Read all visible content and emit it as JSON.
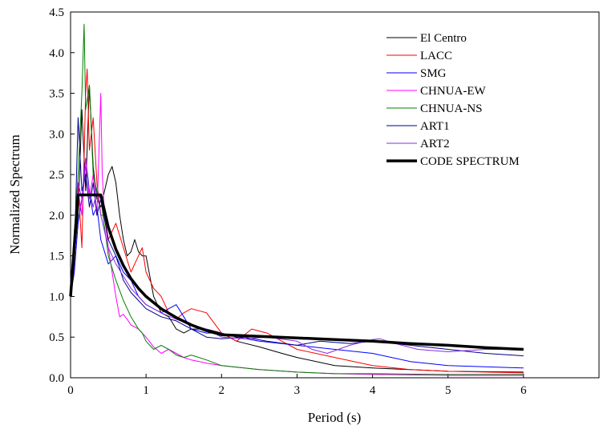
{
  "chart_data": {
    "type": "line",
    "title": "",
    "xlabel": "Period (s)",
    "ylabel": "Normalized Spectrum",
    "xlim": [
      0,
      7
    ],
    "ylim": [
      0,
      4.5
    ],
    "xticks": [
      0,
      1,
      2,
      3,
      4,
      5,
      6
    ],
    "yticks": [
      0.0,
      0.5,
      1.0,
      1.5,
      2.0,
      2.5,
      3.0,
      3.5,
      4.0,
      4.5
    ],
    "xtick_labels": [
      "0",
      "1",
      "2",
      "3",
      "4",
      "5",
      "6"
    ],
    "ytick_labels": [
      "0.0",
      "0.5",
      "1.0",
      "1.5",
      "2.0",
      "2.5",
      "3.0",
      "3.5",
      "4.0",
      "4.5"
    ],
    "grid": false,
    "legend_position": "top-right",
    "series": [
      {
        "name": "El Centro",
        "color": "#000000",
        "width": 1,
        "x": [
          0,
          0.05,
          0.1,
          0.15,
          0.2,
          0.25,
          0.3,
          0.35,
          0.4,
          0.45,
          0.5,
          0.55,
          0.6,
          0.65,
          0.7,
          0.75,
          0.8,
          0.85,
          0.9,
          0.95,
          1.0,
          1.1,
          1.2,
          1.3,
          1.4,
          1.5,
          1.6,
          1.8,
          2.0,
          2.2,
          2.5,
          2.8,
          3.0,
          3.5,
          4.0,
          4.5,
          5.0,
          6.0
        ],
        "y": [
          1.0,
          1.5,
          2.0,
          3.3,
          2.3,
          3.6,
          2.6,
          2.2,
          2.1,
          2.3,
          2.5,
          2.6,
          2.4,
          2.0,
          1.7,
          1.5,
          1.55,
          1.7,
          1.55,
          1.5,
          1.5,
          1.0,
          0.8,
          0.75,
          0.6,
          0.55,
          0.6,
          0.6,
          0.55,
          0.45,
          0.38,
          0.3,
          0.25,
          0.15,
          0.12,
          0.1,
          0.08,
          0.07
        ]
      },
      {
        "name": "LACC",
        "color": "#ff0000",
        "width": 1,
        "x": [
          0,
          0.05,
          0.1,
          0.15,
          0.2,
          0.22,
          0.25,
          0.3,
          0.35,
          0.4,
          0.45,
          0.5,
          0.6,
          0.7,
          0.8,
          0.9,
          0.95,
          1.0,
          1.1,
          1.2,
          1.3,
          1.4,
          1.5,
          1.6,
          1.8,
          2.0,
          2.2,
          2.4,
          2.6,
          2.8,
          3.0,
          3.5,
          4.0,
          4.5,
          5.0,
          6.0
        ],
        "y": [
          1.0,
          1.4,
          2.4,
          1.6,
          3.5,
          3.8,
          2.8,
          3.2,
          2.4,
          2.0,
          2.0,
          1.7,
          1.9,
          1.6,
          1.3,
          1.5,
          1.6,
          1.3,
          1.1,
          1.0,
          0.8,
          0.72,
          0.8,
          0.85,
          0.8,
          0.55,
          0.45,
          0.6,
          0.55,
          0.45,
          0.35,
          0.25,
          0.15,
          0.1,
          0.08,
          0.06
        ]
      },
      {
        "name": "SMG",
        "color": "#0000ff",
        "width": 1,
        "x": [
          0,
          0.05,
          0.1,
          0.15,
          0.2,
          0.25,
          0.3,
          0.35,
          0.4,
          0.5,
          0.6,
          0.7,
          0.8,
          0.9,
          1.0,
          1.1,
          1.2,
          1.3,
          1.4,
          1.5,
          1.6,
          1.8,
          2.0,
          2.2,
          2.5,
          3.0,
          3.5,
          4.0,
          4.5,
          5.0,
          6.0
        ],
        "y": [
          1.0,
          1.3,
          1.9,
          2.2,
          2.7,
          2.3,
          2.0,
          2.1,
          1.7,
          1.4,
          1.5,
          1.3,
          1.2,
          1.0,
          0.9,
          0.85,
          0.8,
          0.85,
          0.9,
          0.75,
          0.6,
          0.55,
          0.55,
          0.5,
          0.45,
          0.4,
          0.35,
          0.3,
          0.2,
          0.15,
          0.12
        ]
      },
      {
        "name": "CHNUA-EW",
        "color": "#ff00ff",
        "width": 1,
        "x": [
          0,
          0.05,
          0.1,
          0.15,
          0.2,
          0.25,
          0.3,
          0.35,
          0.4,
          0.42,
          0.45,
          0.5,
          0.55,
          0.6,
          0.65,
          0.7,
          0.75,
          0.8,
          0.9,
          1.0,
          1.1,
          1.2,
          1.3,
          1.4,
          1.5,
          1.6,
          1.8,
          2.0,
          2.5,
          3.0,
          3.5,
          4.0,
          5.0,
          6.0
        ],
        "y": [
          1.1,
          1.8,
          2.3,
          2.0,
          2.7,
          2.2,
          2.5,
          2.0,
          3.5,
          2.5,
          2.0,
          1.6,
          1.3,
          1.0,
          0.75,
          0.78,
          0.72,
          0.65,
          0.6,
          0.5,
          0.38,
          0.3,
          0.35,
          0.3,
          0.25,
          0.22,
          0.18,
          0.15,
          0.1,
          0.07,
          0.05,
          0.04,
          0.03,
          0.03
        ]
      },
      {
        "name": "CHNUA-NS",
        "color": "#008000",
        "width": 1,
        "x": [
          0,
          0.05,
          0.1,
          0.15,
          0.18,
          0.2,
          0.25,
          0.3,
          0.35,
          0.4,
          0.5,
          0.6,
          0.7,
          0.8,
          0.9,
          0.95,
          1.0,
          1.1,
          1.2,
          1.3,
          1.4,
          1.5,
          1.6,
          1.8,
          2.0,
          2.5,
          3.0,
          3.5,
          4.0,
          5.0,
          6.0
        ],
        "y": [
          1.0,
          1.8,
          2.5,
          3.5,
          4.35,
          3.3,
          3.6,
          2.5,
          2.3,
          2.2,
          1.5,
          1.2,
          0.95,
          0.75,
          0.6,
          0.55,
          0.45,
          0.35,
          0.4,
          0.35,
          0.28,
          0.25,
          0.28,
          0.22,
          0.15,
          0.1,
          0.07,
          0.05,
          0.05,
          0.04,
          0.04
        ]
      },
      {
        "name": "ART1",
        "color": "#00008b",
        "width": 1,
        "x": [
          0,
          0.05,
          0.1,
          0.15,
          0.2,
          0.25,
          0.3,
          0.35,
          0.4,
          0.5,
          0.6,
          0.7,
          0.8,
          0.9,
          1.0,
          1.2,
          1.4,
          1.6,
          1.8,
          2.0,
          2.3,
          2.6,
          3.0,
          3.3,
          3.7,
          4.0,
          4.5,
          5.0,
          5.5,
          6.0
        ],
        "y": [
          1.1,
          1.5,
          3.2,
          2.3,
          2.5,
          2.1,
          2.4,
          2.0,
          2.2,
          1.7,
          1.5,
          1.2,
          1.05,
          0.95,
          0.85,
          0.75,
          0.7,
          0.6,
          0.5,
          0.48,
          0.5,
          0.45,
          0.4,
          0.45,
          0.42,
          0.45,
          0.4,
          0.35,
          0.3,
          0.27
        ]
      },
      {
        "name": "ART2",
        "color": "#8a2be2",
        "width": 1,
        "x": [
          0,
          0.05,
          0.1,
          0.15,
          0.2,
          0.25,
          0.3,
          0.35,
          0.4,
          0.5,
          0.6,
          0.7,
          0.8,
          0.9,
          1.0,
          1.2,
          1.4,
          1.6,
          1.8,
          2.0,
          2.3,
          2.6,
          3.0,
          3.2,
          3.4,
          3.7,
          4.0,
          4.1,
          4.3,
          4.6,
          5.0,
          5.5,
          6.0
        ],
        "y": [
          1.2,
          1.6,
          2.4,
          2.2,
          2.6,
          2.3,
          2.1,
          2.3,
          2.0,
          1.6,
          1.4,
          1.25,
          1.1,
          1.0,
          0.9,
          0.8,
          0.72,
          0.65,
          0.6,
          0.5,
          0.48,
          0.5,
          0.45,
          0.35,
          0.3,
          0.4,
          0.47,
          0.48,
          0.42,
          0.35,
          0.32,
          0.35,
          0.35
        ]
      },
      {
        "name": "CODE SPECTRUM",
        "color": "#000000",
        "width": 3.5,
        "x": [
          0,
          0.1,
          0.15,
          0.2,
          0.25,
          0.3,
          0.35,
          0.4,
          0.5,
          0.6,
          0.7,
          0.8,
          0.9,
          1.0,
          1.2,
          1.4,
          1.6,
          1.8,
          2.0,
          2.5,
          3.0,
          3.5,
          4.0,
          4.5,
          5.0,
          5.5,
          6.0
        ],
        "y": [
          1.0,
          2.25,
          2.25,
          2.25,
          2.25,
          2.25,
          2.25,
          2.25,
          1.85,
          1.58,
          1.38,
          1.22,
          1.1,
          1.0,
          0.85,
          0.74,
          0.65,
          0.58,
          0.53,
          0.51,
          0.49,
          0.47,
          0.45,
          0.42,
          0.4,
          0.37,
          0.35
        ]
      }
    ]
  }
}
